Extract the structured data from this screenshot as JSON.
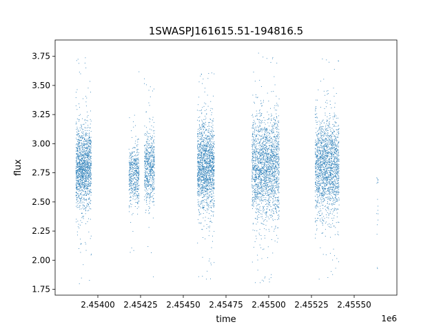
{
  "chart_data": {
    "type": "scatter",
    "title": "1SWASPJ161615.51-194816.5",
    "xlabel": "time",
    "ylabel": "flux",
    "x_offset_label": "1e6",
    "xlim": [
      2.45375,
      2.45575
    ],
    "ylim": [
      1.7,
      3.89
    ],
    "x_ticks": [
      2.454,
      2.45425,
      2.4545,
      2.45475,
      2.455,
      2.45525,
      2.4555
    ],
    "x_tick_labels": [
      "2.45400",
      "2.45425",
      "2.45450",
      "2.45475",
      "2.45500",
      "2.45525",
      "2.45550"
    ],
    "y_ticks": [
      1.75,
      2.0,
      2.25,
      2.5,
      2.75,
      3.0,
      3.25,
      3.5,
      3.75
    ],
    "y_tick_labels": [
      "1.75",
      "2.00",
      "2.25",
      "2.50",
      "2.75",
      "3.00",
      "3.25",
      "3.50",
      "3.75"
    ],
    "marker_color": "#1f77b4",
    "grid": false,
    "series": [
      {
        "clusters": [
          {
            "x_range": [
              2.45387,
              2.45396
            ],
            "center": 2.8,
            "spread": 0.17,
            "min": 1.8,
            "max": 3.74,
            "points": 1400
          },
          {
            "x_range": [
              2.45418,
              2.45424
            ],
            "center": 2.74,
            "spread": 0.12,
            "min": 2.07,
            "max": 3.62,
            "points": 500
          },
          {
            "x_range": [
              2.45427,
              2.45433
            ],
            "center": 2.8,
            "spread": 0.15,
            "min": 1.86,
            "max": 3.56,
            "points": 600
          },
          {
            "x_range": [
              2.45458,
              2.45468
            ],
            "center": 2.8,
            "spread": 0.19,
            "min": 1.84,
            "max": 3.61,
            "points": 1500
          },
          {
            "x_range": [
              2.4549,
              2.45506
            ],
            "center": 2.8,
            "spread": 0.22,
            "min": 1.81,
            "max": 3.78,
            "points": 2000
          },
          {
            "x_range": [
              2.45527,
              2.45541
            ],
            "center": 2.8,
            "spread": 0.2,
            "min": 1.84,
            "max": 3.73,
            "points": 1800
          },
          {
            "x_range": [
              2.45563,
              2.45564
            ],
            "center": 2.5,
            "spread": 0.3,
            "min": 1.93,
            "max": 2.71,
            "points": 15
          }
        ]
      }
    ]
  }
}
